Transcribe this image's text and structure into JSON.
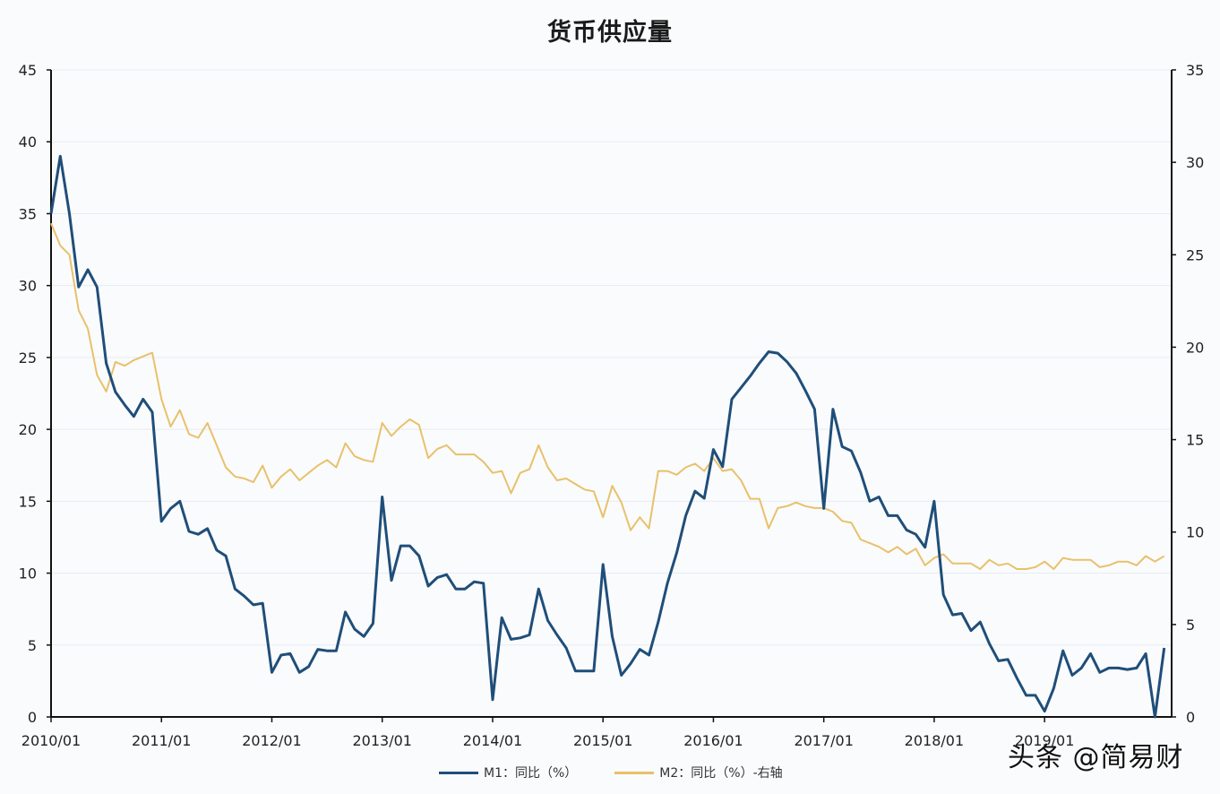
{
  "title": "货币供应量",
  "legend": [
    {
      "label": "M1：同比（%）",
      "color": "#1f4e79"
    },
    {
      "label": "M2：同比（%）-右轴",
      "color": "#e8c16a"
    }
  ],
  "watermark": "头条 @简易财",
  "colors": {
    "m1": "#1f4e79",
    "m2": "#e8c16a",
    "axis": "#111111",
    "grid": "#e6ecf3",
    "background": "#fafbfd"
  },
  "chart_data": {
    "type": "line",
    "title": "货币供应量",
    "xlabel": "",
    "ylabel": "",
    "x_ticks": [
      "2010/01",
      "2011/01",
      "2012/01",
      "2013/01",
      "2014/01",
      "2015/01",
      "2016/01",
      "2017/01",
      "2018/01",
      "2019/01"
    ],
    "y_left": {
      "range": [
        0,
        45
      ],
      "ticks": [
        0,
        5,
        10,
        15,
        20,
        25,
        30,
        35,
        40,
        45
      ]
    },
    "y_right": {
      "range": [
        0,
        35
      ],
      "ticks": [
        0,
        5,
        10,
        15,
        20,
        25,
        30,
        35
      ]
    },
    "grid": true,
    "legend_position": "bottom",
    "x_start": "2010/01",
    "x_end": "2019/12",
    "series": [
      {
        "name": "M1：同比（%）",
        "axis": "left",
        "values": [
          35.0,
          39.0,
          35.0,
          29.9,
          31.1,
          29.9,
          24.6,
          22.6,
          21.7,
          20.9,
          22.1,
          21.2,
          13.6,
          14.5,
          15.0,
          12.9,
          12.7,
          13.1,
          11.6,
          11.2,
          8.9,
          8.4,
          7.8,
          7.9,
          3.1,
          4.3,
          4.4,
          3.1,
          3.5,
          4.7,
          4.6,
          4.6,
          7.3,
          6.1,
          5.6,
          6.5,
          15.3,
          9.5,
          11.9,
          11.9,
          11.2,
          9.1,
          9.7,
          9.9,
          8.9,
          8.9,
          9.4,
          9.3,
          1.2,
          6.9,
          5.4,
          5.5,
          5.7,
          8.9,
          6.7,
          5.7,
          4.8,
          3.2,
          3.2,
          3.2,
          10.6,
          5.6,
          2.9,
          3.7,
          4.7,
          4.3,
          6.6,
          9.3,
          11.4,
          14.0,
          15.7,
          15.2,
          18.6,
          17.4,
          22.1,
          22.9,
          23.7,
          24.6,
          25.4,
          25.3,
          24.7,
          23.9,
          22.7,
          21.4,
          14.5,
          21.4,
          18.8,
          18.5,
          17.0,
          15.0,
          15.3,
          14.0,
          14.0,
          13.0,
          12.7,
          11.8,
          15.0,
          8.5,
          7.1,
          7.2,
          6.0,
          6.6,
          5.1,
          3.9,
          4.0,
          2.7,
          1.5,
          1.5,
          0.4,
          2.0,
          4.6,
          2.9,
          3.4,
          4.4,
          3.1,
          3.4,
          3.4,
          3.3,
          3.4,
          4.4,
          0.0,
          4.8
        ]
      },
      {
        "name": "M2：同比（%）-右轴",
        "axis": "right",
        "values": [
          26.7,
          25.5,
          25.0,
          22.0,
          21.0,
          18.5,
          17.6,
          19.2,
          19.0,
          19.3,
          19.5,
          19.7,
          17.2,
          15.7,
          16.6,
          15.3,
          15.1,
          15.9,
          14.7,
          13.5,
          13.0,
          12.9,
          12.7,
          13.6,
          12.4,
          13.0,
          13.4,
          12.8,
          13.2,
          13.6,
          13.9,
          13.5,
          14.8,
          14.1,
          13.9,
          13.8,
          15.9,
          15.2,
          15.7,
          16.1,
          15.8,
          14.0,
          14.5,
          14.7,
          14.2,
          14.2,
          14.2,
          13.8,
          13.2,
          13.3,
          12.1,
          13.2,
          13.4,
          14.7,
          13.5,
          12.8,
          12.9,
          12.6,
          12.3,
          12.2,
          10.8,
          12.5,
          11.6,
          10.1,
          10.8,
          10.2,
          13.3,
          13.3,
          13.1,
          13.5,
          13.7,
          13.3,
          14.0,
          13.3,
          13.4,
          12.8,
          11.8,
          11.8,
          10.2,
          11.3,
          11.4,
          11.6,
          11.4,
          11.3,
          11.3,
          11.1,
          10.6,
          10.5,
          9.6,
          9.4,
          9.2,
          8.9,
          9.2,
          8.8,
          9.1,
          8.2,
          8.6,
          8.8,
          8.3,
          8.3,
          8.3,
          8.0,
          8.5,
          8.2,
          8.3,
          8.0,
          8.0,
          8.1,
          8.4,
          8.0,
          8.6,
          8.5,
          8.5,
          8.5,
          8.1,
          8.2,
          8.4,
          8.4,
          8.2,
          8.7,
          8.4,
          8.7
        ]
      }
    ]
  }
}
